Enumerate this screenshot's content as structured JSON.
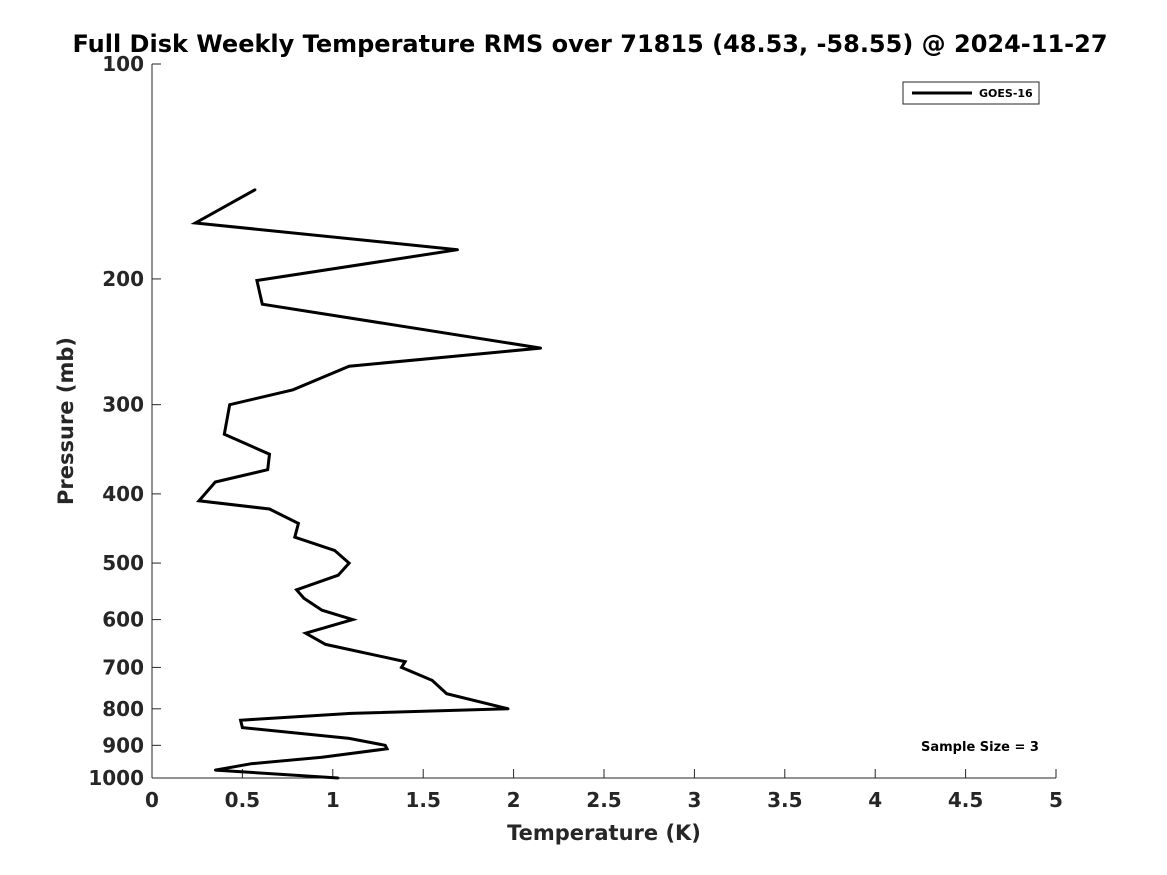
{
  "chart_data": {
    "type": "line",
    "title": "Full Disk Weekly Temperature RMS over 71815 (48.53, -58.55) @ 2024-11-27",
    "xlabel": "Temperature (K)",
    "ylabel": "Pressure (mb)",
    "xlim": [
      0,
      5
    ],
    "ylim": [
      100,
      1000
    ],
    "y_scale": "log",
    "y_reversed": true,
    "x_ticks": [
      "0",
      "0.5",
      "1",
      "1.5",
      "2",
      "2.5",
      "3",
      "3.5",
      "4",
      "4.5",
      "5"
    ],
    "y_ticks": [
      "100",
      "200",
      "300",
      "400",
      "500",
      "600",
      "700",
      "800",
      "900",
      "1000"
    ],
    "grid": false,
    "legend_position": "top-right",
    "series": [
      {
        "name": "GOES-16",
        "color": "#000000",
        "x": [
          0.57,
          0.24,
          1.69,
          0.58,
          0.61,
          2.15,
          1.09,
          0.78,
          0.43,
          0.4,
          0.65,
          0.64,
          0.35,
          0.26,
          0.65,
          0.81,
          0.79,
          1.01,
          1.09,
          1.03,
          0.8,
          0.84,
          0.94,
          1.11,
          0.85,
          0.96,
          1.4,
          1.38,
          1.55,
          1.63,
          1.97,
          1.1,
          0.49,
          0.5,
          1.09,
          1.29,
          1.3,
          0.94,
          0.55,
          0.35,
          1.03
        ],
        "y": [
          150,
          167,
          182,
          201,
          217,
          250,
          265,
          286,
          300,
          330,
          352,
          370,
          385,
          409,
          420,
          440,
          460,
          480,
          500,
          520,
          545,
          560,
          582,
          600,
          627,
          650,
          687,
          700,
          730,
          762,
          800,
          812,
          830,
          850,
          880,
          900,
          910,
          935,
          955,
          975,
          1000
        ]
      }
    ],
    "annotations": [
      "Sample Size = 3"
    ]
  }
}
